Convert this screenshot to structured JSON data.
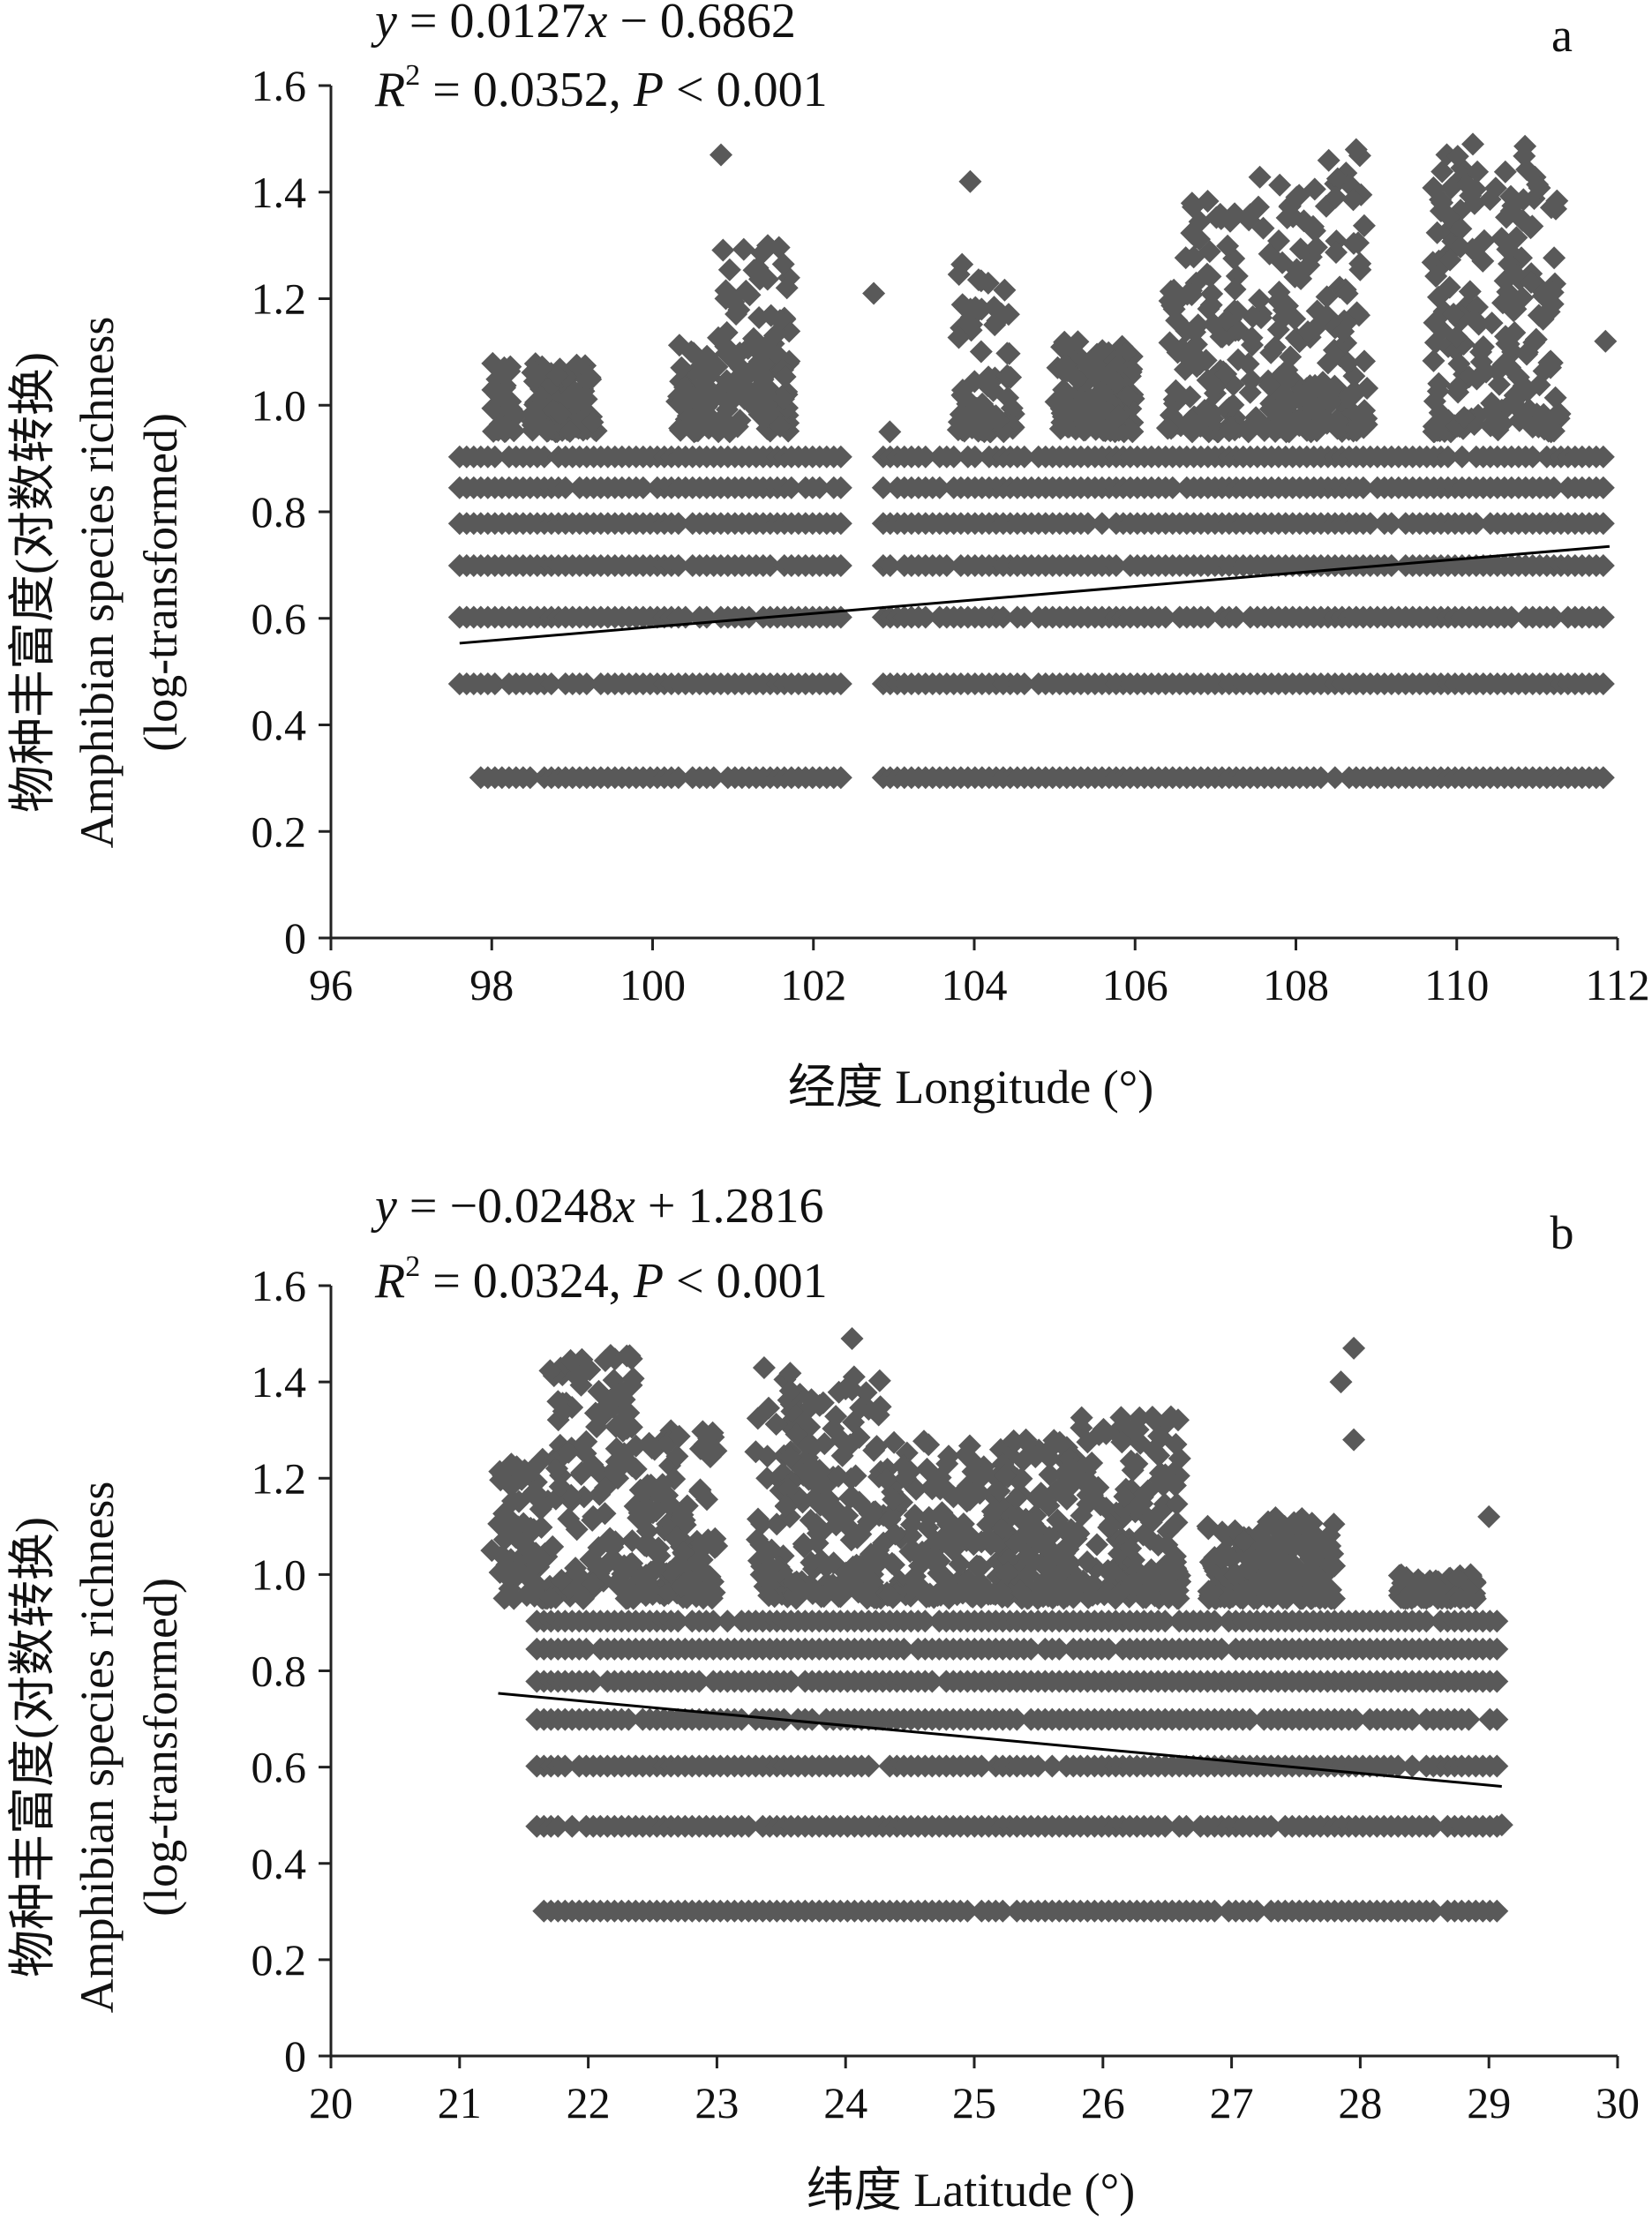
{
  "chart_data": [
    {
      "type": "scatter",
      "panel_label": "a",
      "equation": {
        "line1": {
          "y_var": "y",
          "eq": " = 0.0127",
          "x_var": "x",
          "rest": " − 0.6862"
        },
        "line2": {
          "r_var": "R",
          "sup": "2",
          "r_val": " = 0.0352, ",
          "p_var": "P",
          "p_val": " < 0.001"
        }
      },
      "ylabel_lines": [
        "物种丰富度(对数转换)",
        "Amphibian species richness",
        "(log-transformed)"
      ],
      "xlabel": "经度 Longitude (°)",
      "xlim": [
        96,
        112
      ],
      "ylim": [
        0,
        1.6
      ],
      "xticks": [
        "96",
        "98",
        "100",
        "102",
        "104",
        "106",
        "108",
        "110",
        "112"
      ],
      "yticks": [
        "0",
        "0.2",
        "0.4",
        "0.6",
        "0.8",
        "1.0",
        "1.2",
        "1.4",
        "1.6"
      ],
      "x_range": [
        97.6,
        111.9
      ],
      "levels": [
        0.301,
        0.477,
        0.602,
        0.699,
        0.778,
        0.845,
        0.903
      ],
      "trend": {
        "slope": 0.0127,
        "intercept": -0.6862,
        "x": [
          97.6,
          111.9
        ]
      },
      "gaps": [
        [
          102.4,
          102.8
        ]
      ],
      "clusters": [
        {
          "x": [
            98.0,
            98.3
          ],
          "y": [
            0.95,
            1.08
          ]
        },
        {
          "x": [
            98.5,
            99.3
          ],
          "y": [
            0.95,
            1.08
          ]
        },
        {
          "x": [
            100.3,
            100.7
          ],
          "y": [
            0.95,
            1.12
          ]
        },
        {
          "x": [
            100.8,
            101.7
          ],
          "y": [
            0.95,
            1.3
          ]
        },
        {
          "x": [
            103.8,
            104.5
          ],
          "y": [
            0.95,
            1.28
          ]
        },
        {
          "x": [
            105.0,
            106.0
          ],
          "y": [
            0.95,
            1.12
          ]
        },
        {
          "x": [
            106.4,
            107.3
          ],
          "y": [
            0.95,
            1.4
          ]
        },
        {
          "x": [
            107.4,
            108.9
          ],
          "y": [
            0.95,
            1.47
          ]
        },
        {
          "x": [
            109.7,
            111.3
          ],
          "y": [
            0.95,
            1.49
          ]
        }
      ],
      "outliers": [
        {
          "x": 100.85,
          "y": 1.47
        },
        {
          "x": 102.75,
          "y": 1.21
        },
        {
          "x": 103.95,
          "y": 1.42
        },
        {
          "x": 108.75,
          "y": 1.48
        },
        {
          "x": 110.2,
          "y": 1.49
        },
        {
          "x": 111.85,
          "y": 1.12
        },
        {
          "x": 102.95,
          "y": 0.95
        }
      ]
    },
    {
      "type": "scatter",
      "panel_label": "b",
      "equation": {
        "line1": {
          "y_var": "y",
          "eq": " = −0.0248",
          "x_var": "x",
          "rest": " + 1.2816"
        },
        "line2": {
          "r_var": "R",
          "sup": "2",
          "r_val": " = 0.0324, ",
          "p_var": "P",
          "p_val": " < 0.001"
        }
      },
      "ylabel_lines": [
        "物种丰富度(对数转换)",
        "Amphibian species richness",
        "(log-transformed)"
      ],
      "xlabel": "纬度 Latitude (°)",
      "xlim": [
        20,
        30
      ],
      "ylim": [
        0,
        1.6
      ],
      "xticks": [
        "20",
        "21",
        "22",
        "23",
        "24",
        "25",
        "26",
        "27",
        "28",
        "29",
        "30"
      ],
      "yticks": [
        "0",
        "0.2",
        "0.4",
        "0.6",
        "0.8",
        "1.0",
        "1.2",
        "1.4",
        "1.6"
      ],
      "x_range": [
        21.6,
        29.1
      ],
      "levels": [
        0.301,
        0.477,
        0.602,
        0.699,
        0.778,
        0.845,
        0.903
      ],
      "trend": {
        "slope": -0.0248,
        "intercept": 1.2816,
        "x": [
          21.3,
          29.1
        ]
      },
      "gaps": [],
      "clusters": [
        {
          "x": [
            21.3,
            21.7
          ],
          "y": [
            0.95,
            1.25
          ]
        },
        {
          "x": [
            21.7,
            22.4
          ],
          "y": [
            0.95,
            1.46
          ]
        },
        {
          "x": [
            22.4,
            23.0
          ],
          "y": [
            0.95,
            1.3
          ]
        },
        {
          "x": [
            23.3,
            24.3
          ],
          "y": [
            0.95,
            1.43
          ]
        },
        {
          "x": [
            24.3,
            25.8
          ],
          "y": [
            0.95,
            1.28
          ]
        },
        {
          "x": [
            25.8,
            26.6
          ],
          "y": [
            0.95,
            1.33
          ]
        },
        {
          "x": [
            26.8,
            27.8
          ],
          "y": [
            0.95,
            1.12
          ]
        },
        {
          "x": [
            28.3,
            28.9
          ],
          "y": [
            0.95,
            1.0
          ]
        }
      ],
      "outliers": [
        {
          "x": 24.05,
          "y": 1.49
        },
        {
          "x": 27.95,
          "y": 1.47
        },
        {
          "x": 27.85,
          "y": 1.4
        },
        {
          "x": 27.95,
          "y": 1.28
        },
        {
          "x": 29.0,
          "y": 1.12
        },
        {
          "x": 21.25,
          "y": 1.05
        },
        {
          "x": 29.1,
          "y": 0.48
        }
      ]
    }
  ]
}
